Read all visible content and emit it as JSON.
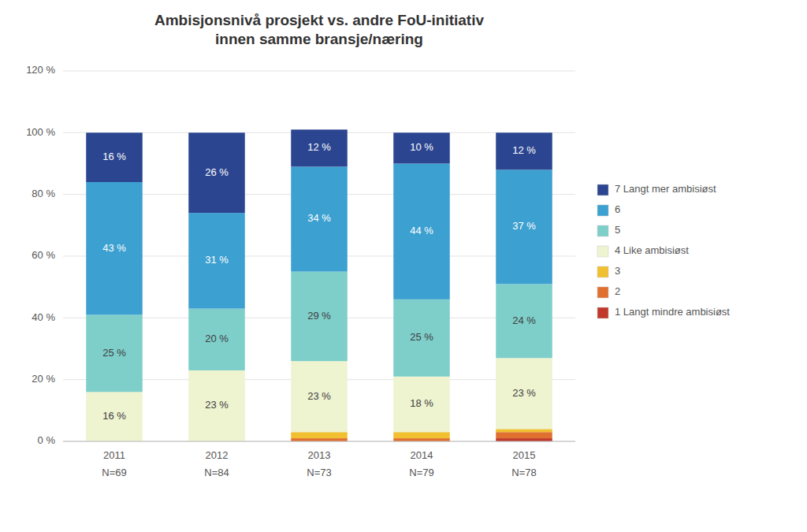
{
  "chart_data": {
    "type": "bar",
    "stacked": true,
    "title": "Ambisjonsnivå prosjekt vs. andre FoU-initiativ\ninnen samme bransje/næring",
    "categories": [
      "2011",
      "2012",
      "2013",
      "2014",
      "2015"
    ],
    "annotations": [
      "N=69",
      "N=84",
      "N=73",
      "N=79",
      "N=78"
    ],
    "series": [
      {
        "name": "1 Langt mindre ambisiøst",
        "color": "#c0392b",
        "values": [
          0,
          0,
          0,
          0,
          1
        ],
        "value_labels": [
          null,
          null,
          null,
          null,
          null
        ]
      },
      {
        "name": "2",
        "color": "#e07030",
        "values": [
          0,
          0,
          1,
          1,
          2
        ],
        "value_labels": [
          null,
          null,
          null,
          null,
          null
        ]
      },
      {
        "name": "3",
        "color": "#f0c030",
        "values": [
          0,
          0,
          2,
          2,
          1
        ],
        "value_labels": [
          null,
          null,
          null,
          null,
          null
        ]
      },
      {
        "name": "4 Like ambisiøst",
        "color": "#eef3d0",
        "values": [
          16,
          23,
          23,
          18,
          23
        ],
        "value_labels": [
          "16 %",
          "23 %",
          "23 %",
          "18 %",
          "23 %"
        ]
      },
      {
        "name": "5",
        "color": "#7ececa",
        "values": [
          25,
          20,
          29,
          25,
          24
        ],
        "value_labels": [
          "25 %",
          "20 %",
          "29 %",
          "25 %",
          "24 %"
        ]
      },
      {
        "name": "6",
        "color": "#3ca0d0",
        "values": [
          43,
          31,
          34,
          44,
          37
        ],
        "value_labels": [
          "43 %",
          "31 %",
          "34 %",
          "44 %",
          "37 %"
        ]
      },
      {
        "name": "7 Langt mer ambisiøst",
        "color": "#2b4590",
        "values": [
          16,
          26,
          12,
          10,
          12
        ],
        "value_labels": [
          "16 %",
          "26 %",
          "12 %",
          "10 %",
          "12 %"
        ]
      }
    ],
    "ylim": [
      0,
      120
    ],
    "yticks": [
      {
        "value": 0,
        "label": "0 %"
      },
      {
        "value": 20,
        "label": "20 %"
      },
      {
        "value": 40,
        "label": "40 %"
      },
      {
        "value": 60,
        "label": "60 %"
      },
      {
        "value": 80,
        "label": "80 %"
      },
      {
        "value": 100,
        "label": "100 %"
      },
      {
        "value": 120,
        "label": "120 %"
      }
    ],
    "grid": true,
    "data_labels": true,
    "legend": "right"
  }
}
